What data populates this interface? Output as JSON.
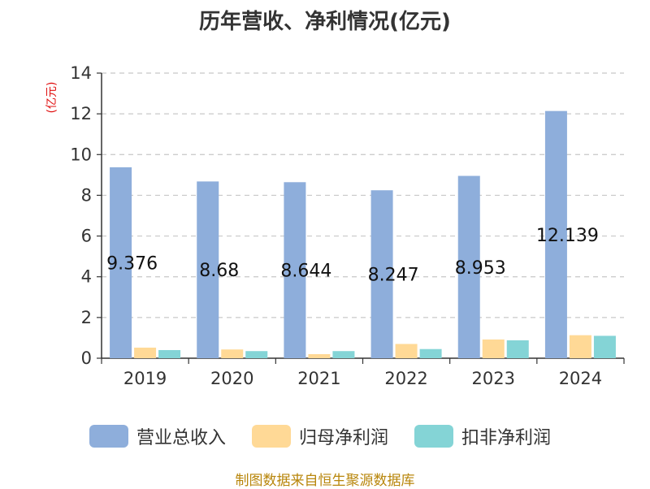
{
  "title": "历年营收、净利情况(亿元)",
  "unit_label": "(亿元)",
  "source": "制图数据来自恒生聚源数据库",
  "colors": {
    "revenue": "#8eaedb",
    "net_profit_parent": "#ffd996",
    "net_profit_deducted": "#84d4d6",
    "unit_label": "#e01010",
    "source": "#b8860b"
  },
  "legend": [
    {
      "name": "营业总收入",
      "color": "#8eaedb"
    },
    {
      "name": "归母净利润",
      "color": "#ffd996"
    },
    {
      "name": "扣非净利润",
      "color": "#84d4d6"
    }
  ],
  "chart_data": {
    "type": "bar",
    "title": "历年营收、净利情况(亿元)",
    "ylabel": "(亿元)",
    "xlabel": "",
    "categories": [
      "2019",
      "2020",
      "2021",
      "2022",
      "2023",
      "2024"
    ],
    "ylim": [
      0,
      14
    ],
    "yticks": [
      0,
      2,
      4,
      6,
      8,
      10,
      12,
      14
    ],
    "grid": true,
    "legend_position": "bottom",
    "series": [
      {
        "name": "营业总收入",
        "values": [
          9.376,
          8.68,
          8.644,
          8.247,
          8.953,
          12.139
        ],
        "data_labels": [
          "9.376",
          "8.68",
          "8.644",
          "8.247",
          "8.953",
          "12.139"
        ]
      },
      {
        "name": "归母净利润",
        "values": [
          0.52,
          0.43,
          0.2,
          0.7,
          0.92,
          1.13
        ]
      },
      {
        "name": "扣非净利润",
        "values": [
          0.4,
          0.35,
          0.35,
          0.45,
          0.88,
          1.1
        ]
      }
    ]
  }
}
